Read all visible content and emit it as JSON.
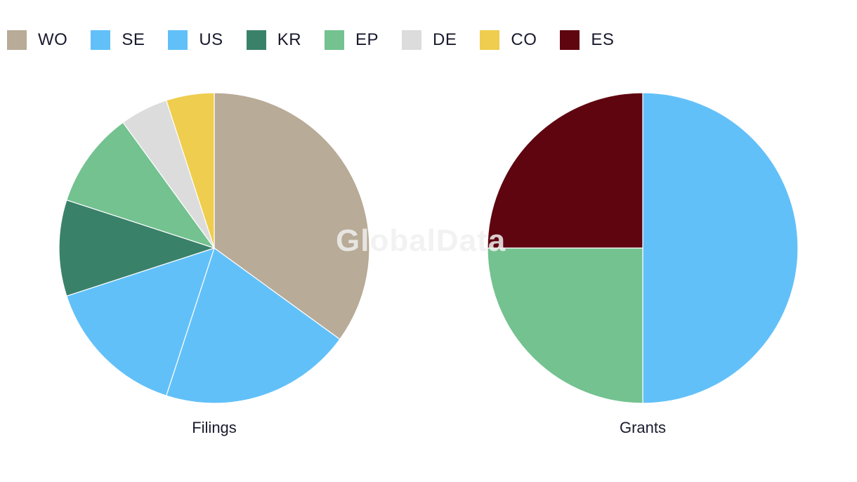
{
  "legend": [
    {
      "label": "WO",
      "color": "#b8ab97"
    },
    {
      "label": "SE",
      "color": "#62c0f9"
    },
    {
      "label": "US",
      "color": "#62c0f9"
    },
    {
      "label": "KR",
      "color": "#3a816a"
    },
    {
      "label": "EP",
      "color": "#73c290"
    },
    {
      "label": "DE",
      "color": "#dcdcdc"
    },
    {
      "label": "CO",
      "color": "#efcd4e"
    },
    {
      "label": "ES",
      "color": "#5f050f"
    }
  ],
  "watermark": "GlobalData",
  "chart_data": [
    {
      "type": "pie",
      "title": "Filings",
      "slices": [
        {
          "label": "WO",
          "value": 7,
          "color": "#b8ab97"
        },
        {
          "label": "SE",
          "value": 4,
          "color": "#62c0f9"
        },
        {
          "label": "US",
          "value": 3,
          "color": "#62c0f9"
        },
        {
          "label": "KR",
          "value": 2,
          "color": "#3a816a"
        },
        {
          "label": "EP",
          "value": 2,
          "color": "#73c290"
        },
        {
          "label": "DE",
          "value": 1,
          "color": "#dcdcdc"
        },
        {
          "label": "CO",
          "value": 1,
          "color": "#efcd4e"
        }
      ]
    },
    {
      "type": "pie",
      "title": "Grants",
      "slices": [
        {
          "label": "US",
          "value": 2,
          "color": "#62c0f9"
        },
        {
          "label": "EP",
          "value": 1,
          "color": "#73c290"
        },
        {
          "label": "ES",
          "value": 1,
          "color": "#5f050f"
        }
      ]
    }
  ]
}
